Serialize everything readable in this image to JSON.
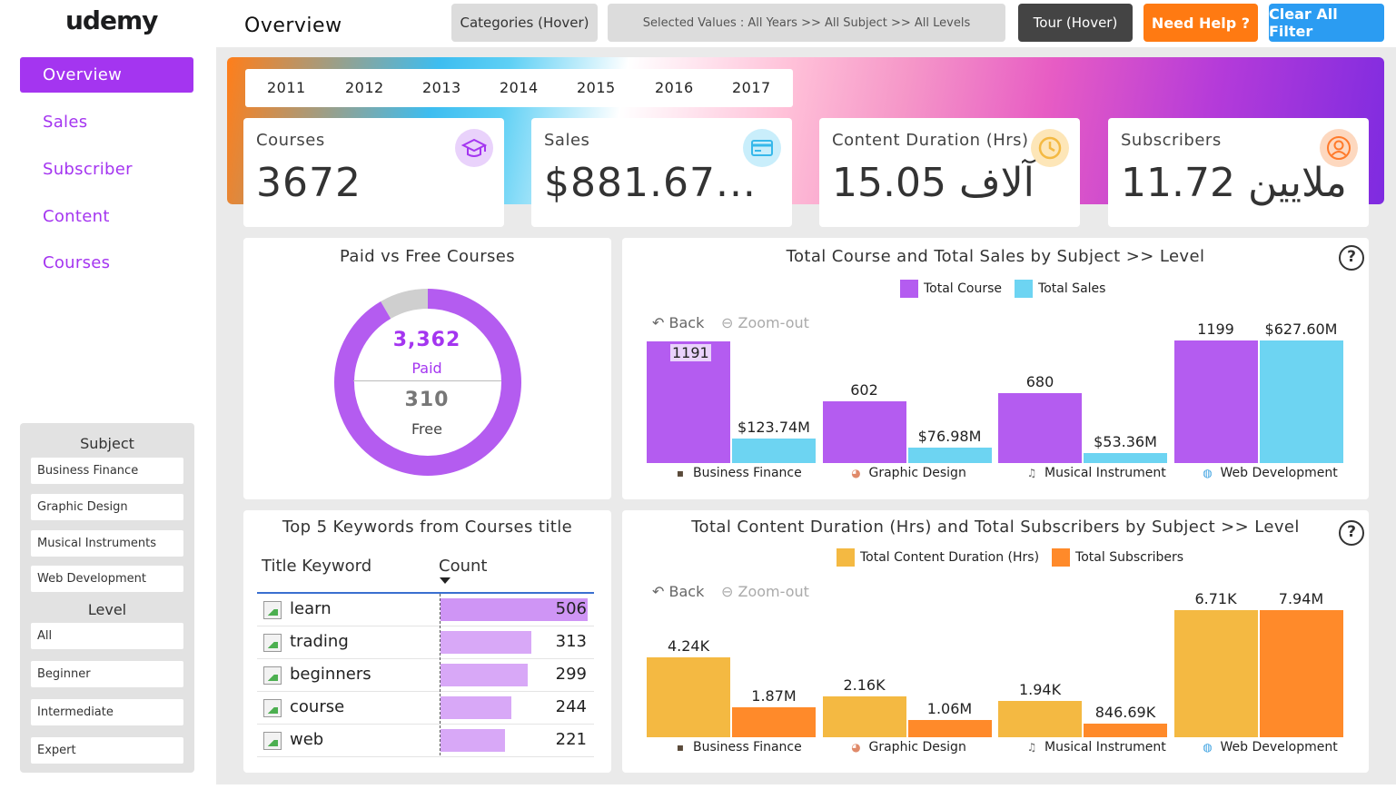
{
  "brand": {
    "logo": "udemy"
  },
  "nav": [
    {
      "label": "Overview",
      "active": true
    },
    {
      "label": "Sales"
    },
    {
      "label": "Subscriber"
    },
    {
      "label": "Content"
    },
    {
      "label": "Courses"
    }
  ],
  "filters": {
    "subject_title": "Subject",
    "subjects": [
      "Business Finance",
      "Graphic Design",
      "Musical Instruments",
      "Web Development"
    ],
    "level_title": "Level",
    "levels": [
      "All",
      "Beginner",
      "Intermediate",
      "Expert"
    ]
  },
  "header": {
    "title": "Overview",
    "categories_btn": "Categories (Hover)",
    "selected_values": "Selected Values : All Years >> All Subject >> All Levels",
    "tour_btn": "Tour (Hover)",
    "help_btn": "Need Help ?",
    "clear_btn": "Clear All Filter"
  },
  "years": [
    "2011",
    "2012",
    "2013",
    "2014",
    "2015",
    "2016",
    "2017"
  ],
  "kpis": [
    {
      "label": "Courses",
      "value": "3672",
      "icon": "graduation-cap-icon",
      "icon_color": "#e9d2fb",
      "icon_fg": "#a435f0"
    },
    {
      "label": "Sales",
      "value": "$881.67...",
      "icon": "credit-card-icon",
      "icon_color": "#c9eefb",
      "icon_fg": "#36b8ea"
    },
    {
      "label": "Content Duration (Hrs)",
      "value": "15.05 آلاف",
      "icon": "clock-icon",
      "icon_color": "#fde6b8",
      "icon_fg": "#f4b942"
    },
    {
      "label": "Subscribers",
      "value": "11.72 ملايين",
      "icon": "user-icon",
      "icon_color": "#fdd8bf",
      "icon_fg": "#ff7a2a"
    }
  ],
  "donut": {
    "title": "Paid vs Free Courses",
    "paid_value": "3,362",
    "paid_label": "Paid",
    "free_value": "310",
    "free_label": "Free",
    "paid": 3362,
    "free": 310,
    "paid_color": "#b45cf0",
    "free_color": "#cfcfcf"
  },
  "chart1": {
    "title": "Total Course and Total Sales by Subject >> Level",
    "back": "Back",
    "zoom": "Zoom-out",
    "colors": {
      "a": "#b45cf0",
      "b": "#6dd4f2"
    }
  },
  "chart2": {
    "title": "Total Content Duration (Hrs) and Total Subscribers by Subject >> Level",
    "back": "Back",
    "zoom": "Zoom-out",
    "colors": {
      "a": "#f4b942",
      "b": "#ff8a2a"
    }
  },
  "keywords": {
    "title": "Top 5 Keywords from Courses title",
    "col_keyword": "Title Keyword",
    "col_count": "Count",
    "rows": [
      {
        "word": "learn",
        "count": 506
      },
      {
        "word": "trading",
        "count": 313
      },
      {
        "word": "beginners",
        "count": 299
      },
      {
        "word": "course",
        "count": 244
      },
      {
        "word": "web",
        "count": 221
      }
    ]
  },
  "chart_data": [
    {
      "type": "bar",
      "title": "Total Course and Total Sales by Subject >> Level",
      "categories": [
        "Business Finance",
        "Graphic Design",
        "Musical Instrument",
        "Web Development"
      ],
      "series": [
        {
          "name": "Total Course",
          "values": [
            1191,
            602,
            680,
            1199
          ],
          "labels": [
            "1191",
            "602",
            "680",
            "1199"
          ]
        },
        {
          "name": "Total Sales",
          "values": [
            123.74,
            76.98,
            53.36,
            627.6
          ],
          "labels": [
            "$123.74M",
            "$76.98M",
            "$53.36M",
            "$627.60M"
          ]
        }
      ],
      "legend": "top-center"
    },
    {
      "type": "bar",
      "title": "Total Content Duration (Hrs) and Total Subscribers by Subject >> Level",
      "categories": [
        "Business Finance",
        "Graphic Design",
        "Musical Instrument",
        "Web Development"
      ],
      "series": [
        {
          "name": "Total Content Duration (Hrs)",
          "values": [
            4.24,
            2.16,
            1.94,
            6.71
          ],
          "labels": [
            "4.24K",
            "2.16K",
            "1.94K",
            "6.71K"
          ]
        },
        {
          "name": "Total Subscribers",
          "values": [
            1.87,
            1.06,
            0.84669,
            7.94
          ],
          "labels": [
            "1.87M",
            "1.06M",
            "846.69K",
            "7.94M"
          ]
        }
      ],
      "legend": "top-center"
    },
    {
      "type": "pie",
      "title": "Paid vs Free Courses",
      "categories": [
        "Paid",
        "Free"
      ],
      "values": [
        3362,
        310
      ]
    }
  ]
}
